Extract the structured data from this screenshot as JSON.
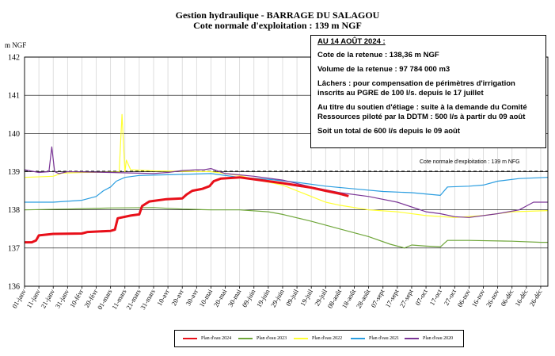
{
  "title": "Gestion hydraulique - BARRAGE DU SALAGOU",
  "subtitle": "Cote normale d'exploitation : 139 m NGF",
  "info_box": {
    "header": "AU 14 AOÛT 2024 :",
    "lines": [
      "Cote de la retenue : 138,36 m NGF",
      "Volume de la retenue : 97 784 000 m3",
      "Lâchers : pour compensation de périmètres d'irrigation inscrits au PGRE de 100 l/s. depuis le 17 juillet",
      "Au titre du soutien d'étiage : suite à la demande du Comité Ressources piloté par la DDTM : 500 l/s à partir du 09 août",
      "Soit un total de 600 l/s depuis le 09 août"
    ]
  },
  "colors": {
    "2024": "#e8101a",
    "2023": "#6fa63a",
    "2022": "#ffff33",
    "2021": "#2a9de0",
    "2020": "#7a3596",
    "reference": "#000000"
  },
  "chart_data": {
    "type": "line",
    "title": "Gestion hydraulique - BARRAGE DU SALAGOU",
    "subtitle": "Cote normale d'exploitation : 139 m NGF",
    "ylabel": "m NGF",
    "xlabel": "",
    "ylim": [
      136,
      142
    ],
    "yticks": [
      136,
      137,
      138,
      139,
      140,
      141,
      142
    ],
    "xlim": [
      1,
      366
    ],
    "grid": true,
    "legend_position": "bottom",
    "x_ticks": [
      {
        "day": 1,
        "label": "01-janv"
      },
      {
        "day": 11,
        "label": "11-janv"
      },
      {
        "day": 21,
        "label": "21-janv"
      },
      {
        "day": 31,
        "label": "31-janv"
      },
      {
        "day": 41,
        "label": "10-févr"
      },
      {
        "day": 51,
        "label": "20-févr"
      },
      {
        "day": 61,
        "label": "01-mars"
      },
      {
        "day": 71,
        "label": "11-mars"
      },
      {
        "day": 81,
        "label": "21-mars"
      },
      {
        "day": 91,
        "label": "31-mars"
      },
      {
        "day": 101,
        "label": "10-avr"
      },
      {
        "day": 111,
        "label": "20-avr"
      },
      {
        "day": 121,
        "label": "30-avr"
      },
      {
        "day": 131,
        "label": "10-mai"
      },
      {
        "day": 141,
        "label": "20-mai"
      },
      {
        "day": 151,
        "label": "30-mai"
      },
      {
        "day": 161,
        "label": "09-juin"
      },
      {
        "day": 171,
        "label": "19-juin"
      },
      {
        "day": 181,
        "label": "29-juin"
      },
      {
        "day": 191,
        "label": "09-juil"
      },
      {
        "day": 201,
        "label": "19-juil"
      },
      {
        "day": 211,
        "label": "29-juil"
      },
      {
        "day": 221,
        "label": "08-août"
      },
      {
        "day": 231,
        "label": "18-août"
      },
      {
        "day": 241,
        "label": "28-août"
      },
      {
        "day": 251,
        "label": "07-sept"
      },
      {
        "day": 261,
        "label": "17-sept"
      },
      {
        "day": 271,
        "label": "27-sept"
      },
      {
        "day": 281,
        "label": "07-oct"
      },
      {
        "day": 291,
        "label": "17-oct"
      },
      {
        "day": 301,
        "label": "27-oct"
      },
      {
        "day": 311,
        "label": "06-nov"
      },
      {
        "day": 321,
        "label": "16-nov"
      },
      {
        "day": 331,
        "label": "26-nov"
      },
      {
        "day": 341,
        "label": "06-déc"
      },
      {
        "day": 351,
        "label": "16-déc"
      },
      {
        "day": 361,
        "label": "26-déc"
      }
    ],
    "reference_line": {
      "y": 139,
      "label": "Cote normale d'exploitation : 139 m NFG"
    },
    "series": [
      {
        "name": "Plan d'eau 2024",
        "key": "2024",
        "width": 3,
        "points": [
          [
            1,
            137.15
          ],
          [
            6,
            137.15
          ],
          [
            9,
            137.2
          ],
          [
            11,
            137.33
          ],
          [
            21,
            137.37
          ],
          [
            41,
            137.38
          ],
          [
            45,
            137.42
          ],
          [
            61,
            137.45
          ],
          [
            64,
            137.48
          ],
          [
            66,
            137.78
          ],
          [
            75,
            137.85
          ],
          [
            81,
            137.88
          ],
          [
            83,
            138.1
          ],
          [
            88,
            138.22
          ],
          [
            100,
            138.28
          ],
          [
            111,
            138.3
          ],
          [
            114,
            138.4
          ],
          [
            118,
            138.5
          ],
          [
            125,
            138.55
          ],
          [
            130,
            138.62
          ],
          [
            133,
            138.75
          ],
          [
            138,
            138.82
          ],
          [
            151,
            138.85
          ],
          [
            161,
            138.8
          ],
          [
            181,
            138.7
          ],
          [
            201,
            138.58
          ],
          [
            211,
            138.5
          ],
          [
            221,
            138.42
          ],
          [
            227,
            138.36
          ]
        ]
      },
      {
        "name": "Plan d'eau 2023",
        "key": "2023",
        "width": 1.2,
        "points": [
          [
            1,
            138.0
          ],
          [
            31,
            138.02
          ],
          [
            61,
            138.05
          ],
          [
            91,
            138.06
          ],
          [
            111,
            138.02
          ],
          [
            131,
            138.0
          ],
          [
            151,
            138.0
          ],
          [
            171,
            137.95
          ],
          [
            181,
            137.88
          ],
          [
            201,
            137.7
          ],
          [
            221,
            137.5
          ],
          [
            241,
            137.3
          ],
          [
            256,
            137.1
          ],
          [
            266,
            137.0
          ],
          [
            271,
            137.08
          ],
          [
            281,
            137.05
          ],
          [
            291,
            137.03
          ],
          [
            296,
            137.2
          ],
          [
            311,
            137.2
          ],
          [
            341,
            137.18
          ],
          [
            361,
            137.15
          ],
          [
            366,
            137.15
          ]
        ]
      },
      {
        "name": "Plan d'eau 2022",
        "key": "2022",
        "width": 1.2,
        "points": [
          [
            1,
            138.85
          ],
          [
            21,
            138.88
          ],
          [
            27,
            138.96
          ],
          [
            41,
            138.98
          ],
          [
            67,
            138.99
          ],
          [
            69,
            140.5
          ],
          [
            71,
            139.0
          ],
          [
            72,
            139.3
          ],
          [
            75,
            139.05
          ],
          [
            91,
            139.02
          ],
          [
            131,
            139.0
          ],
          [
            151,
            138.9
          ],
          [
            161,
            138.8
          ],
          [
            181,
            138.65
          ],
          [
            201,
            138.35
          ],
          [
            211,
            138.2
          ],
          [
            221,
            138.12
          ],
          [
            241,
            138.0
          ],
          [
            261,
            137.95
          ],
          [
            281,
            137.85
          ],
          [
            301,
            137.8
          ],
          [
            321,
            137.85
          ],
          [
            341,
            137.95
          ],
          [
            366,
            137.98
          ]
        ]
      },
      {
        "name": "Plan d'eau 2021",
        "key": "2021",
        "width": 1.2,
        "points": [
          [
            1,
            138.2
          ],
          [
            21,
            138.2
          ],
          [
            41,
            138.25
          ],
          [
            51,
            138.35
          ],
          [
            56,
            138.5
          ],
          [
            61,
            138.6
          ],
          [
            65,
            138.75
          ],
          [
            71,
            138.85
          ],
          [
            81,
            138.9
          ],
          [
            101,
            138.92
          ],
          [
            131,
            138.95
          ],
          [
            151,
            138.85
          ],
          [
            171,
            138.8
          ],
          [
            191,
            138.72
          ],
          [
            211,
            138.62
          ],
          [
            231,
            138.55
          ],
          [
            251,
            138.48
          ],
          [
            271,
            138.45
          ],
          [
            291,
            138.38
          ],
          [
            296,
            138.6
          ],
          [
            311,
            138.62
          ],
          [
            321,
            138.65
          ],
          [
            331,
            138.75
          ],
          [
            346,
            138.82
          ],
          [
            366,
            138.85
          ]
        ]
      },
      {
        "name": "Plan d'eau 2020",
        "key": "2020",
        "width": 1.2,
        "points": [
          [
            1,
            139.05
          ],
          [
            11,
            138.98
          ],
          [
            18,
            139.0
          ],
          [
            20,
            139.65
          ],
          [
            22,
            139.0
          ],
          [
            25,
            138.95
          ],
          [
            31,
            139.0
          ],
          [
            61,
            138.98
          ],
          [
            91,
            138.95
          ],
          [
            101,
            138.98
          ],
          [
            111,
            139.03
          ],
          [
            121,
            139.05
          ],
          [
            126,
            139.05
          ],
          [
            131,
            139.08
          ],
          [
            141,
            138.95
          ],
          [
            161,
            138.88
          ],
          [
            181,
            138.78
          ],
          [
            201,
            138.6
          ],
          [
            221,
            138.45
          ],
          [
            241,
            138.35
          ],
          [
            261,
            138.2
          ],
          [
            281,
            137.95
          ],
          [
            291,
            137.9
          ],
          [
            301,
            137.82
          ],
          [
            311,
            137.8
          ],
          [
            331,
            137.9
          ],
          [
            346,
            138.0
          ],
          [
            351,
            138.1
          ],
          [
            356,
            138.2
          ],
          [
            366,
            138.2
          ]
        ]
      }
    ]
  }
}
